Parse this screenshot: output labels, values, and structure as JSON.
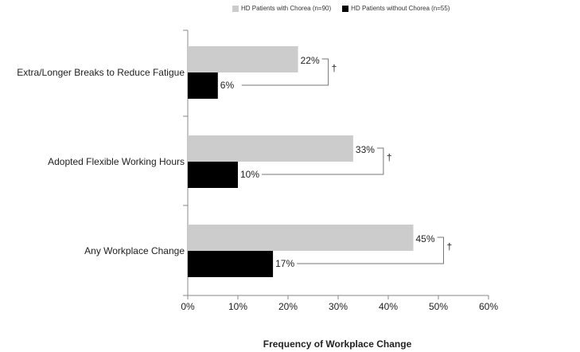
{
  "chart_data": {
    "type": "bar",
    "orientation": "horizontal",
    "categories": [
      "Extra/Longer Breaks to Reduce Fatigue",
      "Adopted Flexible Working Hours",
      "Any Workplace Change"
    ],
    "series": [
      {
        "name": "HD Patients with Chorea (n=90)",
        "values": [
          22,
          33,
          45
        ],
        "labels": [
          "22%",
          "33%",
          "45%"
        ],
        "color": "#cccccc"
      },
      {
        "name": "HD Patients without Chorea (n=55)",
        "values": [
          6,
          10,
          17
        ],
        "labels": [
          "6%",
          "10%",
          "17%"
        ],
        "color": "#000000"
      }
    ],
    "significance_markers": [
      "†",
      "†",
      "†"
    ],
    "xlabel": "Frequency of Workplace Change",
    "xlim": [
      0,
      60
    ],
    "xticks": [
      "0%",
      "10%",
      "20%",
      "30%",
      "40%",
      "50%",
      "60%"
    ],
    "grid": false,
    "legend_position": "top"
  }
}
